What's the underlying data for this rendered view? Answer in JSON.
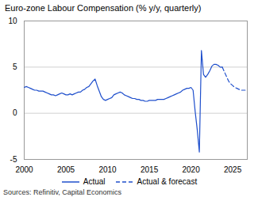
{
  "chart_data": {
    "type": "line",
    "title": "Euro-zone Labour Compensation (% y/y, quarterly)",
    "source": "Sources: Refinitiv, Capital Economics",
    "color": "#1f4fcc",
    "xlim": [
      2000.0,
      2026.75
    ],
    "xticks": [
      2000,
      2005,
      2010,
      2015,
      2020,
      2025
    ],
    "ylim": [
      -5,
      10
    ],
    "yticks": [
      -5,
      0,
      5,
      10
    ],
    "grid": true,
    "legend": "bottom",
    "series": [
      {
        "name": "Actual",
        "line_style": "solid",
        "x": [
          2000.0,
          2000.25,
          2000.5,
          2000.75,
          2001.0,
          2001.25,
          2001.5,
          2001.75,
          2002.0,
          2002.25,
          2002.5,
          2002.75,
          2003.0,
          2003.25,
          2003.5,
          2003.75,
          2004.0,
          2004.25,
          2004.5,
          2004.75,
          2005.0,
          2005.25,
          2005.5,
          2005.75,
          2006.0,
          2006.25,
          2006.5,
          2006.75,
          2007.0,
          2007.25,
          2007.5,
          2007.75,
          2008.0,
          2008.25,
          2008.5,
          2008.75,
          2009.0,
          2009.25,
          2009.5,
          2009.75,
          2010.0,
          2010.25,
          2010.5,
          2010.75,
          2011.0,
          2011.25,
          2011.5,
          2011.75,
          2012.0,
          2012.25,
          2012.5,
          2012.75,
          2013.0,
          2013.25,
          2013.5,
          2013.75,
          2014.0,
          2014.25,
          2014.5,
          2014.75,
          2015.0,
          2015.25,
          2015.5,
          2015.75,
          2016.0,
          2016.25,
          2016.5,
          2016.75,
          2017.0,
          2017.25,
          2017.5,
          2017.75,
          2018.0,
          2018.25,
          2018.5,
          2018.75,
          2019.0,
          2019.25,
          2019.5,
          2019.75,
          2020.0,
          2020.25,
          2020.5,
          2020.75,
          2021.0,
          2021.25,
          2021.5,
          2021.75,
          2022.0,
          2022.25,
          2022.5,
          2022.75,
          2023.0,
          2023.25,
          2023.5,
          2023.75
        ],
        "values": [
          2.8,
          2.9,
          2.8,
          2.7,
          2.6,
          2.5,
          2.5,
          2.4,
          2.4,
          2.4,
          2.3,
          2.2,
          2.1,
          2.0,
          2.0,
          1.9,
          2.0,
          2.1,
          2.2,
          2.1,
          2.0,
          2.0,
          2.1,
          2.0,
          2.1,
          2.2,
          2.3,
          2.3,
          2.5,
          2.6,
          2.8,
          2.9,
          3.2,
          3.5,
          3.7,
          3.0,
          2.4,
          1.8,
          1.5,
          1.4,
          1.5,
          1.6,
          1.7,
          2.0,
          2.1,
          2.2,
          2.3,
          2.2,
          2.0,
          1.9,
          1.8,
          1.7,
          1.6,
          1.6,
          1.5,
          1.5,
          1.4,
          1.4,
          1.3,
          1.3,
          1.4,
          1.4,
          1.4,
          1.4,
          1.5,
          1.5,
          1.5,
          1.5,
          1.6,
          1.7,
          1.8,
          1.9,
          2.0,
          2.1,
          2.2,
          2.3,
          2.5,
          2.6,
          2.7,
          2.7,
          2.8,
          2.5,
          0.2,
          -1.8,
          -4.2,
          6.8,
          4.2,
          3.9,
          4.2,
          4.6,
          5.1,
          5.3,
          5.3,
          5.2,
          5.0,
          5.0
        ]
      },
      {
        "name": "Actual & forecast",
        "line_style": "dashed",
        "x": [
          2023.75,
          2024.0,
          2024.25,
          2024.5,
          2024.75,
          2025.0,
          2025.25,
          2025.5,
          2025.75,
          2026.0,
          2026.25,
          2026.5
        ],
        "values": [
          5.0,
          4.5,
          4.0,
          3.5,
          3.2,
          3.0,
          2.8,
          2.7,
          2.6,
          2.5,
          2.5,
          2.5
        ]
      }
    ]
  }
}
